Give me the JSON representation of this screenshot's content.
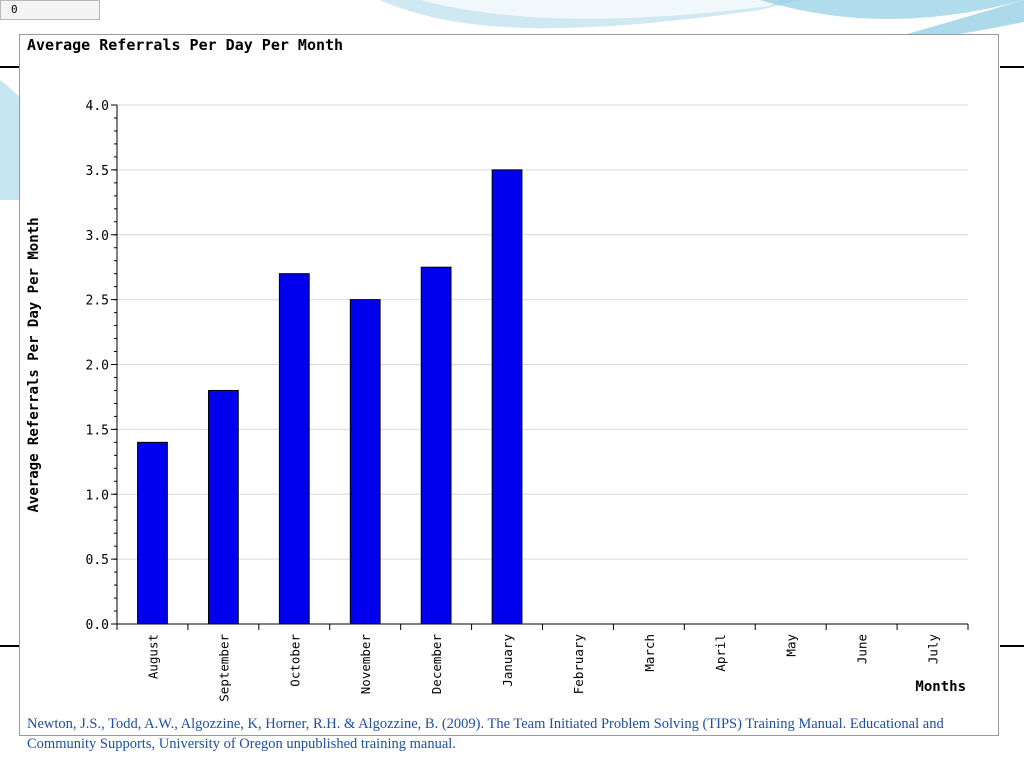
{
  "slide": {
    "corner_label": "0",
    "citation": "Newton, J.S., Todd, A.W., Algozzine, K, Horner, R.H. & Algozzine, B. (2009). The Team Initiated Problem Solving (TIPS) Training Manual. Educational and Community Supports, University of Oregon unpublished training manual."
  },
  "colors": {
    "bar_fill": "#0000ee",
    "bar_stroke": "#000000",
    "grid": "#d9d9d9",
    "citation_text": "#1f4fa0",
    "slide_accent": "#5bb6d6"
  },
  "chart_data": {
    "type": "bar",
    "title": "Average Referrals Per Day Per Month",
    "xlabel": "Months",
    "ylabel": "Average Referrals Per Day Per Month",
    "categories": [
      "August",
      "September",
      "October",
      "November",
      "December",
      "January",
      "February",
      "March",
      "April",
      "May",
      "June",
      "July"
    ],
    "values": [
      1.4,
      1.8,
      2.7,
      2.5,
      2.75,
      3.5,
      null,
      null,
      null,
      null,
      null,
      null
    ],
    "ylim": [
      0,
      4.0
    ],
    "yticks": [
      "0.0",
      "0.5",
      "1.0",
      "1.5",
      "2.0",
      "2.5",
      "3.0",
      "3.5",
      "4.0"
    ],
    "grid": true,
    "legend": "none"
  }
}
